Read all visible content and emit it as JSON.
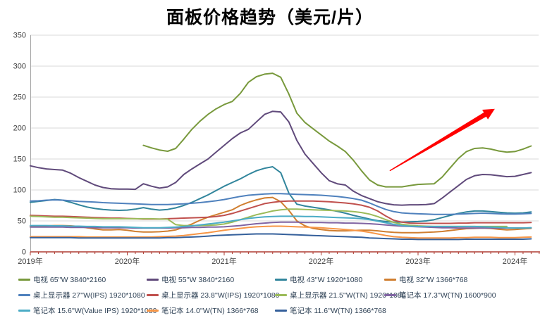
{
  "title": "面板价格趋势（美元/片）",
  "chart_data": {
    "type": "line",
    "title": "面板价格趋势（美元/片）",
    "x_unit": "month",
    "x_start": "2019-01",
    "x_end": "2024-03",
    "x_tick_labels": [
      "2019年",
      "2020年",
      "2021年",
      "2022年",
      "2023年",
      "2024年"
    ],
    "y_ticks": [
      0,
      50,
      100,
      150,
      200,
      250,
      300,
      350
    ],
    "ylim": [
      0,
      350
    ],
    "grid": "horizontal",
    "legend_position": "bottom",
    "colors": {
      "x_axis": "#AE3B32",
      "y_axis": "#A6A6A6",
      "gridline": "#D9D9D9",
      "tick_label": "#404040",
      "legend_text": "#2F4256",
      "title": "#000000",
      "annotation_arrow": "#FF0000"
    },
    "annotation_arrow": {
      "from_month": 44.5,
      "from_value": 131,
      "to_month": 57.5,
      "to_value": 231,
      "color": "#FF0000"
    },
    "series": [
      {
        "id": "tv65",
        "label": "电视 65''W 3840*2160",
        "color": "#78993C",
        "values": [
          null,
          null,
          null,
          null,
          null,
          null,
          null,
          null,
          null,
          null,
          null,
          null,
          null,
          null,
          172,
          168,
          164.5,
          162.5,
          167,
          182,
          198,
          211,
          222,
          231,
          238,
          243,
          256,
          274,
          283,
          287,
          288.5,
          282,
          255,
          224,
          209,
          199,
          189,
          179,
          171,
          162,
          148,
          131,
          116,
          108,
          105,
          105,
          105,
          107,
          109,
          109.5,
          110,
          121,
          136,
          151,
          162,
          167,
          168,
          166,
          163,
          161,
          162,
          166,
          171
        ]
      },
      {
        "id": "tv55",
        "label": "电视 55''W 3840*2160",
        "color": "#604A7B",
        "values": [
          139,
          136,
          134,
          133,
          132,
          127,
          120,
          114,
          108,
          104,
          102,
          101.5,
          101.5,
          101,
          110,
          106,
          103,
          105,
          112,
          125,
          134,
          142,
          150,
          161,
          172,
          183,
          192,
          198,
          210,
          222,
          227,
          226,
          210,
          180,
          158,
          143,
          128,
          115,
          110,
          108,
          98,
          91,
          86,
          81,
          78,
          76,
          75.5,
          76,
          76,
          76.5,
          78,
          87,
          97,
          107,
          117,
          123,
          125,
          124.5,
          123,
          121.5,
          122,
          125,
          128
        ]
      },
      {
        "id": "tv43",
        "label": "电视 43''W 1920*1080",
        "color": "#31859C",
        "values": [
          80,
          81.5,
          83,
          84.5,
          83.5,
          80,
          76,
          72.5,
          70,
          68.5,
          67.5,
          67,
          67.5,
          69,
          71.5,
          69,
          67.5,
          68.5,
          71,
          75,
          80,
          86,
          92,
          99,
          106,
          112,
          118,
          125,
          131,
          135,
          137.5,
          128,
          95,
          77,
          74,
          72,
          70,
          68,
          65.5,
          62.5,
          59,
          56,
          53,
          50.5,
          49,
          48,
          48,
          48.5,
          49,
          50,
          52,
          55.5,
          59,
          62,
          64.5,
          66,
          66,
          65,
          64,
          63,
          62.5,
          63,
          64.5
        ]
      },
      {
        "id": "tv32",
        "label": "电视 32''W 1366*768",
        "color": "#D07E2F",
        "values": [
          41,
          41.5,
          42,
          42.5,
          42.5,
          42,
          41,
          39,
          37,
          35.5,
          35.5,
          36,
          35,
          33,
          32,
          32,
          32.5,
          33.5,
          35.5,
          40,
          45,
          51,
          56,
          60,
          64,
          68,
          75,
          80,
          84,
          87,
          88,
          81,
          67,
          50,
          42,
          38,
          36,
          34.5,
          34,
          34,
          34.5,
          35,
          35,
          34,
          32.5,
          31.5,
          31,
          31,
          31,
          31.5,
          32,
          33,
          34.5,
          36,
          37.5,
          38,
          38.5,
          38,
          36.5,
          35.5,
          36,
          37,
          38
        ]
      },
      {
        "id": "mon27",
        "label": "桌上显示器 27''W(IPS) 1920*1080",
        "color": "#4F81BD",
        "values": [
          82,
          82.5,
          83.5,
          84,
          83.5,
          82.5,
          81.5,
          81,
          80.5,
          79.5,
          79,
          78.5,
          78,
          77.5,
          77,
          76.5,
          76.5,
          76.5,
          77,
          77.5,
          78.5,
          79.5,
          81,
          82.5,
          84.5,
          87,
          89.5,
          91.5,
          92.5,
          93.5,
          94,
          94,
          93.5,
          93,
          92.5,
          92,
          91.5,
          90.5,
          89.5,
          88,
          86,
          83.5,
          79,
          73.5,
          68.5,
          65,
          63,
          62,
          61.5,
          61,
          60.5,
          60.5,
          60.5,
          61,
          61.5,
          62,
          62.5,
          62,
          61.5,
          61,
          61,
          61.5,
          62
        ]
      },
      {
        "id": "mon238",
        "label": "桌上显示器 23.8''W(IPS) 1920*1080",
        "color": "#C0504D",
        "values": [
          59,
          58.5,
          58,
          57.5,
          57.5,
          57,
          56.5,
          56,
          55.5,
          55,
          54.5,
          54.5,
          54,
          53.5,
          53,
          53,
          53,
          53.5,
          54,
          54.5,
          55,
          55.5,
          56,
          57,
          59,
          62,
          66,
          70,
          74,
          78,
          80,
          81.5,
          82,
          82,
          82,
          82,
          81.5,
          81,
          80,
          79,
          77.5,
          75.5,
          72,
          66,
          58,
          51,
          48,
          46.5,
          46,
          46,
          46,
          46,
          46,
          46.5,
          46.5,
          47,
          47,
          47,
          47,
          47,
          47,
          47,
          47.5
        ]
      },
      {
        "id": "mon215",
        "label": "桌上显示器 21.5''W(TN) 1920*1080",
        "color": "#9BBB59",
        "values": [
          57.5,
          57,
          56.5,
          56,
          56,
          55.5,
          55,
          54.5,
          54,
          53.5,
          53.5,
          53.5,
          53.5,
          53.5,
          53.5,
          53.5,
          53,
          53,
          44,
          42.5,
          42.5,
          42.5,
          43,
          43.5,
          45,
          48,
          52,
          56,
          60,
          63,
          66,
          68,
          69,
          69,
          68.5,
          68,
          67.5,
          67,
          66.5,
          66,
          65,
          63.5,
          61,
          57,
          52,
          47.5,
          44.5,
          43,
          42,
          41.5,
          41,
          41,
          41,
          41,
          41,
          41,
          41,
          41,
          41,
          41,
          null,
          null,
          null
        ]
      },
      {
        "id": "nb173",
        "label": "笔记本 17.3''W(TN) 1600*900",
        "color": "#8064A2",
        "values": [
          40,
          40,
          40,
          40,
          40,
          39.5,
          39.5,
          39.5,
          39,
          39,
          39,
          39,
          39,
          38.5,
          38.5,
          38.5,
          38.5,
          38.5,
          39,
          39,
          39.5,
          39.5,
          40,
          40,
          40.5,
          41.5,
          42.5,
          44,
          45.5,
          46.5,
          47.5,
          48,
          48,
          48,
          47.5,
          47.5,
          47.5,
          47,
          47,
          46.5,
          46.5,
          46,
          45.5,
          44.5,
          43.5,
          42.5,
          41.5,
          41,
          40.5,
          40,
          39.5,
          39,
          39,
          38.5,
          38.5,
          38.5,
          38.5,
          38.5,
          38.5,
          38.5,
          38.5,
          38.5,
          39
        ]
      },
      {
        "id": "nb156",
        "label": "笔记本 15.6''W(Value IPS) 1920*1080",
        "color": "#4BACC6",
        "values": [
          42.5,
          42.5,
          42.5,
          42,
          42,
          41.5,
          41.5,
          41,
          41,
          40.5,
          40.5,
          40.5,
          40,
          39.5,
          39,
          39,
          39,
          39.5,
          40,
          41,
          42,
          43.5,
          45,
          46.5,
          48,
          50,
          52,
          54,
          55.5,
          56.5,
          57,
          57.5,
          57.5,
          57.5,
          57,
          57,
          56.5,
          56,
          55.5,
          55,
          54.5,
          53.5,
          52,
          49.5,
          47,
          44.5,
          42.5,
          41.5,
          41,
          41,
          41,
          41,
          41,
          41,
          41,
          41,
          40.5,
          40,
          39.5,
          39,
          38.5,
          38.5,
          39
        ]
      },
      {
        "id": "nb140",
        "label": "笔记本 14.0''W(TN) 1366*768",
        "color": "#F79646",
        "values": [
          24.5,
          24.5,
          24.5,
          24.5,
          24.5,
          24.5,
          24.5,
          24,
          24,
          24,
          24,
          24,
          24,
          24,
          24,
          24,
          24.5,
          25,
          25.5,
          26.5,
          28,
          29.5,
          31,
          33,
          35,
          36.5,
          38,
          39.5,
          40.5,
          41,
          41.5,
          41.5,
          41,
          40.5,
          40,
          39.5,
          39,
          38,
          37,
          36,
          35,
          33.5,
          31.5,
          29,
          26.5,
          24.5,
          23.5,
          23,
          22.5,
          22.5,
          22.5,
          22.5,
          22.5,
          23,
          23,
          23.5,
          23.5,
          23.5,
          23,
          23,
          23,
          23.5,
          24
        ]
      },
      {
        "id": "nb116",
        "label": "笔记本 11.6''W(TN) 1366*768",
        "color": "#35609B",
        "values": [
          23,
          23,
          23,
          23,
          23,
          23,
          22.5,
          22.5,
          22.5,
          22.5,
          22.5,
          22.5,
          22.5,
          22.5,
          22.5,
          22.5,
          22.5,
          23,
          23,
          23.5,
          24,
          24.5,
          25.5,
          26.5,
          27,
          27.5,
          28,
          28.5,
          29,
          29,
          29,
          28.5,
          28,
          27.5,
          27,
          26.5,
          26,
          25.5,
          25,
          24.5,
          24,
          23.5,
          22.5,
          22,
          21.5,
          21,
          20.5,
          20.5,
          20,
          20,
          20,
          20,
          20,
          20,
          20.5,
          20.5,
          20.5,
          20.5,
          20.5,
          20.5,
          20.5,
          20.5,
          21
        ]
      }
    ]
  }
}
